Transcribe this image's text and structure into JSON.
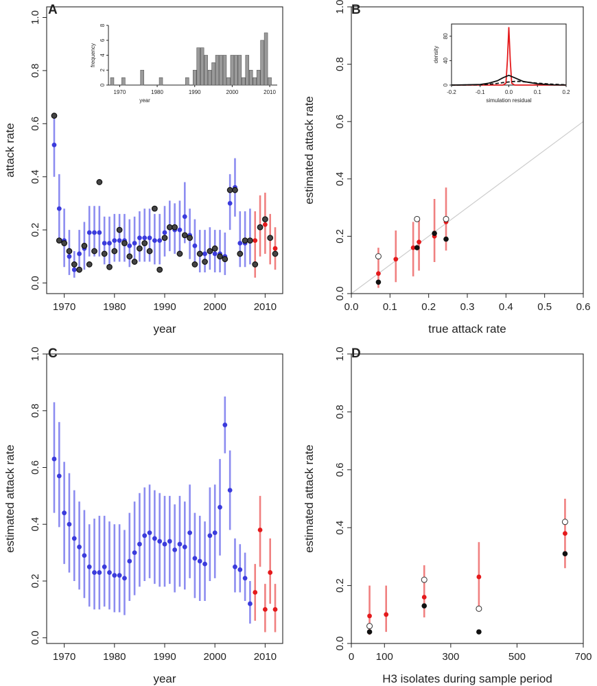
{
  "colors": {
    "blue": "#3b3bdc",
    "blue_bar": "#8c8cf0",
    "red": "#e41a1c",
    "red_bar": "#f08080",
    "black": "#111111",
    "grey": "#999999",
    "hist": "#9a9a9a"
  },
  "chart_data": [
    {
      "panel": "A",
      "type": "scatter",
      "title": "",
      "xlabel": "year",
      "ylabel": "attack rate",
      "xlim": [
        1966.5,
        2013.5
      ],
      "ylim": [
        -0.04,
        1.04
      ],
      "xticks": [
        1970,
        1980,
        1990,
        2000,
        2010
      ],
      "yticks": [
        0.0,
        0.2,
        0.4,
        0.6,
        0.8,
        1.0
      ],
      "xtick_labels": [
        "1970",
        "1980",
        "1990",
        "2000",
        "2010"
      ],
      "ytick_labels": [
        "0.0",
        "0.2",
        "0.4",
        "0.6",
        "0.8",
        "1.0"
      ],
      "series": [
        {
          "name": "estimate (fit period)",
          "color": "blue",
          "x": [
            1968,
            1969,
            1970,
            1971,
            1972,
            1973,
            1974,
            1975,
            1976,
            1977,
            1978,
            1979,
            1980,
            1981,
            1982,
            1983,
            1984,
            1985,
            1986,
            1987,
            1988,
            1989,
            1990,
            1991,
            1992,
            1993,
            1994,
            1995,
            1996,
            1997,
            1998,
            1999,
            2000,
            2001,
            2002,
            2003,
            2004,
            2005,
            2006,
            2007
          ],
          "y": [
            0.52,
            0.28,
            0.16,
            0.1,
            0.05,
            0.11,
            0.13,
            0.19,
            0.19,
            0.19,
            0.15,
            0.15,
            0.16,
            0.16,
            0.16,
            0.14,
            0.15,
            0.17,
            0.17,
            0.17,
            0.16,
            0.16,
            0.19,
            0.21,
            0.2,
            0.2,
            0.25,
            0.18,
            0.14,
            0.11,
            0.11,
            0.12,
            0.11,
            0.11,
            0.1,
            0.3,
            0.36,
            0.15,
            0.15,
            0.16
          ],
          "lo": [
            0.4,
            0.16,
            0.06,
            0.03,
            0.02,
            0.04,
            0.05,
            0.1,
            0.1,
            0.1,
            0.07,
            0.07,
            0.08,
            0.08,
            0.08,
            0.06,
            0.07,
            0.08,
            0.08,
            0.08,
            0.07,
            0.07,
            0.1,
            0.12,
            0.11,
            0.11,
            0.15,
            0.09,
            0.06,
            0.04,
            0.04,
            0.05,
            0.04,
            0.04,
            0.03,
            0.2,
            0.25,
            0.06,
            0.06,
            0.07
          ],
          "hi": [
            0.64,
            0.41,
            0.28,
            0.2,
            0.12,
            0.2,
            0.23,
            0.29,
            0.29,
            0.29,
            0.25,
            0.25,
            0.26,
            0.26,
            0.26,
            0.24,
            0.25,
            0.27,
            0.28,
            0.28,
            0.26,
            0.26,
            0.29,
            0.31,
            0.3,
            0.31,
            0.38,
            0.28,
            0.24,
            0.2,
            0.2,
            0.21,
            0.2,
            0.2,
            0.19,
            0.41,
            0.47,
            0.27,
            0.27,
            0.28
          ]
        },
        {
          "name": "estimate (held out)",
          "color": "red",
          "x": [
            2008,
            2009,
            2010,
            2011,
            2012
          ],
          "y": [
            0.16,
            0.21,
            0.22,
            0.17,
            0.13
          ],
          "lo": [
            0.02,
            0.1,
            0.11,
            0.07,
            0.05
          ],
          "hi": [
            0.27,
            0.33,
            0.34,
            0.26,
            0.21
          ]
        },
        {
          "name": "observed",
          "color": "black",
          "marker": "open-dark",
          "x": [
            1968,
            1969,
            1970,
            1971,
            1972,
            1973,
            1974,
            1975,
            1976,
            1977,
            1978,
            1979,
            1980,
            1981,
            1982,
            1983,
            1984,
            1985,
            1986,
            1987,
            1988,
            1989,
            1990,
            1991,
            1992,
            1993,
            1994,
            1995,
            1996,
            1997,
            1998,
            1999,
            2000,
            2001,
            2002,
            2003,
            2004,
            2005,
            2006,
            2007,
            2008,
            2009,
            2010,
            2011,
            2012
          ],
          "y": [
            0.63,
            0.16,
            0.15,
            0.12,
            0.07,
            0.05,
            0.14,
            0.07,
            0.12,
            0.38,
            0.11,
            0.06,
            0.12,
            0.2,
            0.15,
            0.1,
            0.08,
            0.13,
            0.15,
            0.12,
            0.28,
            0.05,
            0.17,
            0.21,
            0.21,
            0.11,
            0.18,
            0.17,
            0.07,
            0.11,
            0.08,
            0.12,
            0.13,
            0.1,
            0.09,
            0.35,
            0.35,
            0.11,
            0.16,
            0.16,
            0.07,
            0.21,
            0.24,
            0.17,
            0.11
          ]
        }
      ],
      "inset": {
        "type": "bar",
        "xlabel": "year",
        "ylabel": "frequency",
        "xlim": [
          1967,
          2012
        ],
        "ylim": [
          0,
          8
        ],
        "xticks": [
          1970,
          1980,
          1990,
          2000,
          2010
        ],
        "yticks": [
          0,
          2,
          4,
          6,
          8
        ],
        "xtick_labels": [
          "1970",
          "1980",
          "1990",
          "2000",
          "2010"
        ],
        "ytick_labels": [
          "0",
          "2",
          "4",
          "6",
          "8"
        ],
        "x": [
          1968,
          1971,
          1976,
          1981,
          1988,
          1990,
          1991,
          1992,
          1993,
          1994,
          1995,
          1996,
          1997,
          1998,
          1999,
          2000,
          2001,
          2002,
          2003,
          2004,
          2005,
          2006,
          2007,
          2008,
          2009,
          2010
        ],
        "values": [
          1,
          1,
          2,
          1,
          1,
          2,
          5,
          5,
          4,
          2,
          3,
          4,
          4,
          4,
          1,
          4,
          4,
          4,
          1,
          4,
          2,
          1,
          2,
          6,
          7,
          1
        ]
      }
    },
    {
      "panel": "B",
      "type": "scatter",
      "xlabel": "true attack rate",
      "ylabel": "estimated attack rate",
      "xlim": [
        0,
        0.6
      ],
      "ylim": [
        0,
        1.0
      ],
      "xticks": [
        0,
        0.1,
        0.2,
        0.3,
        0.4,
        0.5,
        0.6
      ],
      "yticks": [
        0,
        0.2,
        0.4,
        0.6,
        0.8,
        1.0
      ],
      "xtick_labels": [
        "0.0",
        "0.1",
        "0.2",
        "0.3",
        "0.4",
        "0.5",
        "0.6"
      ],
      "ytick_labels": [
        "0.0",
        "0.2",
        "0.4",
        "0.6",
        "0.8",
        "1.0"
      ],
      "identity_line": true,
      "series": [
        {
          "name": "estimate",
          "color": "red",
          "x": [
            0.07,
            0.115,
            0.16,
            0.175,
            0.215,
            0.245
          ],
          "y": [
            0.07,
            0.12,
            0.16,
            0.18,
            0.2,
            0.25
          ],
          "lo": [
            0.02,
            0.04,
            0.06,
            0.08,
            0.11,
            0.15
          ],
          "hi": [
            0.16,
            0.22,
            0.25,
            0.26,
            0.33,
            0.37
          ]
        },
        {
          "name": "open",
          "color": "black",
          "marker": "open",
          "x": [
            0.07,
            0.17,
            0.245
          ],
          "y": [
            0.13,
            0.26,
            0.26
          ]
        },
        {
          "name": "filled",
          "color": "black",
          "marker": "filled",
          "x": [
            0.07,
            0.17,
            0.215,
            0.245
          ],
          "y": [
            0.04,
            0.16,
            0.21,
            0.19
          ]
        }
      ],
      "inset": {
        "type": "line",
        "xlabel": "simulation residual",
        "ylabel": "density",
        "xlim": [
          -0.2,
          0.2
        ],
        "ylim": [
          0,
          100
        ],
        "xticks": [
          -0.2,
          -0.1,
          0,
          0.1,
          0.2
        ],
        "yticks": [
          0,
          40,
          80
        ],
        "xtick_labels": [
          "-0.2",
          "-0.1",
          "0.0",
          "0.1",
          "0.2"
        ],
        "ytick_labels": [
          "0",
          "40",
          "80"
        ],
        "series": [
          {
            "name": "red density",
            "color": "red",
            "x": [
              -0.2,
              -0.02,
              -0.01,
              -0.005,
              0,
              0.005,
              0.01,
              0.02,
              0.2
            ],
            "y": [
              0,
              0,
              3,
              40,
              95,
              40,
              3,
              0,
              0
            ]
          },
          {
            "name": "black density",
            "color": "black",
            "x": [
              -0.2,
              -0.15,
              -0.1,
              -0.07,
              -0.04,
              -0.02,
              0,
              0.02,
              0.05,
              0.1,
              0.15,
              0.2
            ],
            "y": [
              0,
              0.3,
              1,
              3,
              7,
              12,
              16,
              12,
              6,
              2,
              0.5,
              0
            ]
          },
          {
            "name": "dashed density",
            "color": "black",
            "dash": true,
            "x": [
              -0.2,
              -0.1,
              -0.05,
              -0.02,
              0,
              0.02,
              0.04,
              0.06,
              0.1,
              0.15,
              0.2
            ],
            "y": [
              0,
              0.5,
              2,
              4,
              5,
              6,
              6,
              5,
              3,
              1.5,
              0.5
            ]
          }
        ]
      }
    },
    {
      "panel": "C",
      "type": "scatter",
      "xlabel": "year",
      "ylabel": "estimated attack rate",
      "xlim": [
        1966.5,
        2013.5
      ],
      "ylim": [
        -0.02,
        1.0
      ],
      "xticks": [
        1970,
        1980,
        1990,
        2000,
        2010
      ],
      "yticks": [
        0,
        0.2,
        0.4,
        0.6,
        0.8,
        1.0
      ],
      "xtick_labels": [
        "1970",
        "1980",
        "1990",
        "2000",
        "2010"
      ],
      "ytick_labels": [
        "0.0",
        "0.2",
        "0.4",
        "0.6",
        "0.8",
        "1.0"
      ],
      "series": [
        {
          "name": "estimate (fit period)",
          "color": "blue",
          "x": [
            1968,
            1969,
            1970,
            1971,
            1972,
            1973,
            1974,
            1975,
            1976,
            1977,
            1978,
            1979,
            1980,
            1981,
            1982,
            1983,
            1984,
            1985,
            1986,
            1987,
            1988,
            1989,
            1990,
            1991,
            1992,
            1993,
            1994,
            1995,
            1996,
            1997,
            1998,
            1999,
            2000,
            2001,
            2002,
            2003,
            2004,
            2005,
            2006,
            2007
          ],
          "y": [
            0.63,
            0.57,
            0.44,
            0.4,
            0.35,
            0.32,
            0.29,
            0.25,
            0.23,
            0.23,
            0.25,
            0.23,
            0.22,
            0.22,
            0.21,
            0.27,
            0.3,
            0.33,
            0.36,
            0.37,
            0.35,
            0.34,
            0.33,
            0.34,
            0.31,
            0.33,
            0.32,
            0.37,
            0.28,
            0.27,
            0.26,
            0.36,
            0.37,
            0.46,
            0.75,
            0.52,
            0.25,
            0.24,
            0.21,
            0.12
          ],
          "lo": [
            0.44,
            0.39,
            0.26,
            0.23,
            0.2,
            0.17,
            0.14,
            0.11,
            0.1,
            0.1,
            0.11,
            0.1,
            0.09,
            0.09,
            0.08,
            0.13,
            0.15,
            0.18,
            0.2,
            0.21,
            0.19,
            0.18,
            0.18,
            0.19,
            0.16,
            0.18,
            0.17,
            0.21,
            0.14,
            0.13,
            0.13,
            0.2,
            0.21,
            0.29,
            0.65,
            0.38,
            0.16,
            0.16,
            0.13,
            0.05
          ],
          "hi": [
            0.83,
            0.76,
            0.62,
            0.58,
            0.52,
            0.48,
            0.45,
            0.4,
            0.42,
            0.43,
            0.43,
            0.41,
            0.4,
            0.4,
            0.38,
            0.44,
            0.48,
            0.51,
            0.53,
            0.54,
            0.52,
            0.51,
            0.5,
            0.5,
            0.47,
            0.5,
            0.48,
            0.54,
            0.44,
            0.43,
            0.41,
            0.53,
            0.54,
            0.63,
            0.85,
            0.66,
            0.35,
            0.33,
            0.3,
            0.2
          ]
        },
        {
          "name": "estimate (held out)",
          "color": "red",
          "x": [
            2008,
            2009,
            2010,
            2011,
            2012
          ],
          "y": [
            0.16,
            0.38,
            0.1,
            0.23,
            0.1
          ],
          "lo": [
            0.06,
            0.25,
            0.02,
            0.12,
            0.02
          ],
          "hi": [
            0.26,
            0.5,
            0.19,
            0.35,
            0.19
          ]
        }
      ]
    },
    {
      "panel": "D",
      "type": "scatter",
      "xlabel": "H3 isolates during sample period",
      "ylabel": "estimated attack rate",
      "xlim": [
        0,
        700
      ],
      "ylim": [
        0,
        1.0
      ],
      "xticks": [
        0,
        100,
        300,
        500,
        700
      ],
      "yticks": [
        0,
        0.2,
        0.4,
        0.6,
        0.8,
        1.0
      ],
      "xtick_labels": [
        "0",
        "100",
        "300",
        "500",
        "700"
      ],
      "ytick_labels": [
        "0.0",
        "0.2",
        "0.4",
        "0.6",
        "0.8",
        "1.0"
      ],
      "series": [
        {
          "name": "estimate",
          "color": "red",
          "x": [
            55,
            105,
            220,
            385,
            645
          ],
          "y": [
            0.095,
            0.1,
            0.16,
            0.23,
            0.38
          ],
          "lo": [
            0.03,
            0.04,
            0.09,
            0.11,
            0.26
          ],
          "hi": [
            0.2,
            0.2,
            0.27,
            0.35,
            0.5
          ]
        },
        {
          "name": "open",
          "color": "black",
          "marker": "open",
          "x": [
            55,
            220,
            385,
            645
          ],
          "y": [
            0.06,
            0.22,
            0.12,
            0.42
          ]
        },
        {
          "name": "filled",
          "color": "black",
          "marker": "filled",
          "x": [
            55,
            220,
            385,
            645
          ],
          "y": [
            0.04,
            0.13,
            0.04,
            0.31
          ]
        }
      ]
    }
  ]
}
